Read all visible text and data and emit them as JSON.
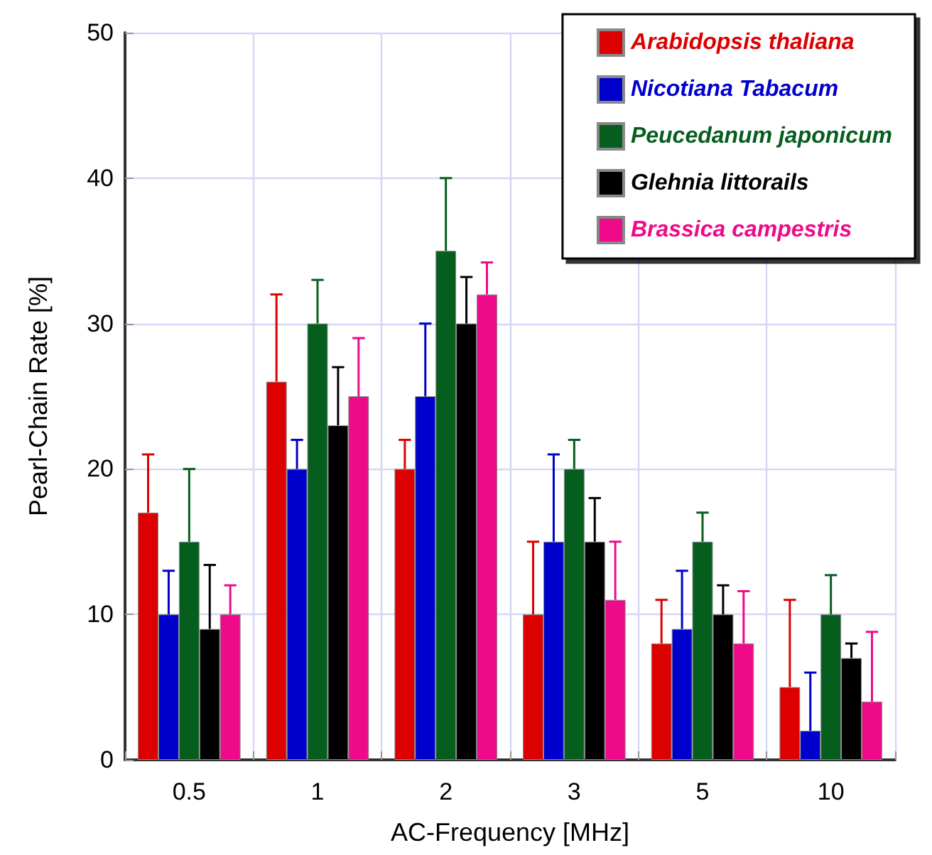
{
  "chart_data": {
    "type": "bar",
    "xlabel": "AC-Frequency [MHz]",
    "ylabel": "Pearl-Chain Rate [%]",
    "categories": [
      "0.5",
      "1",
      "2",
      "3",
      "5",
      "10"
    ],
    "series": [
      {
        "name": "Arabidopsis thaliana",
        "color": "#dd0000",
        "values": [
          17,
          26,
          20,
          10,
          8,
          5
        ],
        "errors": [
          [
            17,
            21
          ],
          [
            26,
            32
          ],
          [
            20,
            22
          ],
          [
            10,
            15
          ],
          [
            8,
            11
          ],
          [
            5,
            11
          ]
        ]
      },
      {
        "name": "Nicotiana Tabacum",
        "color": "#0000cc",
        "values": [
          10,
          20,
          25,
          15,
          9,
          2
        ],
        "errors": [
          [
            10,
            13
          ],
          [
            20,
            22
          ],
          [
            25,
            30
          ],
          [
            15,
            21
          ],
          [
            9,
            13
          ],
          [
            2,
            6
          ]
        ]
      },
      {
        "name": "Peucedanum japonicum",
        "color": "#065e1e",
        "values": [
          15,
          30,
          35,
          20,
          15,
          10
        ],
        "errors": [
          [
            15,
            20
          ],
          [
            30,
            33
          ],
          [
            35,
            40
          ],
          [
            20,
            22
          ],
          [
            15,
            17
          ],
          [
            10,
            12.7
          ]
        ]
      },
      {
        "name": "Glehnia littorails",
        "color": "#000000",
        "values": [
          9,
          23,
          30,
          15,
          10,
          7
        ],
        "errors": [
          [
            9,
            13.4
          ],
          [
            23,
            27
          ],
          [
            30,
            33.2
          ],
          [
            15,
            18
          ],
          [
            10,
            12
          ],
          [
            7,
            8
          ]
        ]
      },
      {
        "name": "Brassica campestris",
        "color": "#ee0a88",
        "values": [
          10,
          25,
          32,
          11,
          8,
          4
        ],
        "errors": [
          [
            10,
            12
          ],
          [
            25,
            29
          ],
          [
            32,
            34.2
          ],
          [
            11,
            15
          ],
          [
            8,
            11.6
          ],
          [
            4,
            8.8
          ]
        ]
      }
    ],
    "ylim": [
      0,
      50
    ],
    "yticks": [
      0,
      10,
      20,
      30,
      40,
      50
    ],
    "grid": true,
    "legend": "top right"
  }
}
